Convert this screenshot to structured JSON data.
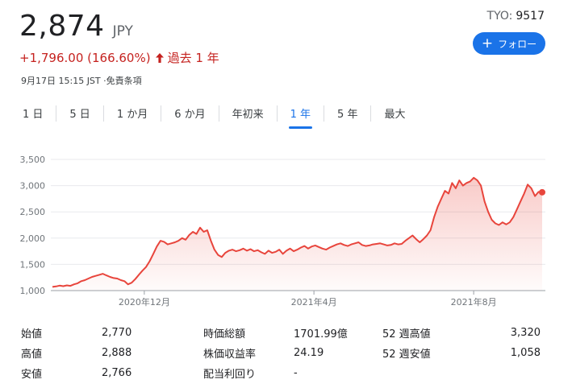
{
  "quote": {
    "price": "2,874",
    "currency": "JPY",
    "change": "+1,796.00 (166.60%)",
    "period": "過去 1 年",
    "timestamp": "9月17日 15:15 JST ·免責条項",
    "exchange": "TYO:",
    "symbol": "9517"
  },
  "follow_button": {
    "label": "フォロー"
  },
  "ranges": [
    {
      "label": "1 日",
      "active": false
    },
    {
      "label": "5 日",
      "active": false
    },
    {
      "label": "1 か月",
      "active": false
    },
    {
      "label": "6 か月",
      "active": false
    },
    {
      "label": "年初来",
      "active": false
    },
    {
      "label": "1 年",
      "active": true
    },
    {
      "label": "5 年",
      "active": false
    },
    {
      "label": "最大",
      "active": false
    }
  ],
  "colors": {
    "line": "#e8453c",
    "accent": "#1a73e8",
    "down": "#c5221f"
  },
  "chart_data": {
    "type": "area",
    "y_ticks": [
      "3,500",
      "3,000",
      "2,500",
      "2,000",
      "1,500",
      "1,000"
    ],
    "y_values": [
      3500,
      3000,
      2500,
      2000,
      1500,
      1000
    ],
    "ylim": [
      1000,
      3500
    ],
    "x_ticks": [
      "2020年12月",
      "2021年4月",
      "2021年8月"
    ],
    "x_tick_pos": [
      0.189,
      0.532,
      0.855
    ],
    "grid": true,
    "series": [
      {
        "values": [
          1070,
          1080,
          1095,
          1085,
          1100,
          1090,
          1120,
          1140,
          1180,
          1200,
          1230,
          1260,
          1280,
          1300,
          1320,
          1290,
          1260,
          1240,
          1230,
          1200,
          1180,
          1120,
          1150,
          1220,
          1300,
          1380,
          1450,
          1560,
          1700,
          1840,
          1950,
          1930,
          1880,
          1900,
          1920,
          1950,
          2000,
          1970,
          2060,
          2120,
          2080,
          2200,
          2120,
          2150,
          1950,
          1780,
          1680,
          1640,
          1720,
          1760,
          1780,
          1750,
          1770,
          1800,
          1760,
          1790,
          1750,
          1770,
          1730,
          1700,
          1760,
          1720,
          1740,
          1780,
          1700,
          1760,
          1800,
          1750,
          1780,
          1820,
          1850,
          1800,
          1840,
          1860,
          1830,
          1800,
          1780,
          1820,
          1850,
          1880,
          1900,
          1870,
          1850,
          1880,
          1900,
          1920,
          1870,
          1850,
          1860,
          1880,
          1890,
          1900,
          1880,
          1860,
          1870,
          1900,
          1880,
          1890,
          1950,
          2000,
          2050,
          1980,
          1920,
          1980,
          2050,
          2150,
          2400,
          2600,
          2750,
          2900,
          2850,
          3050,
          2950,
          3100,
          3000,
          3050,
          3080,
          3150,
          3100,
          3000,
          2700,
          2500,
          2350,
          2280,
          2250,
          2300,
          2260,
          2300,
          2400,
          2550,
          2700,
          2850,
          3020,
          2950,
          2800,
          2880,
          2874
        ]
      }
    ],
    "last_value": 2874
  },
  "stats": {
    "col1": [
      {
        "label": "始値",
        "value": "2,770"
      },
      {
        "label": "高値",
        "value": "2,888"
      },
      {
        "label": "安値",
        "value": "2,766"
      }
    ],
    "col2": [
      {
        "label": "時価総額",
        "value": "1701.99億"
      },
      {
        "label": "株価収益率",
        "value": "24.19"
      },
      {
        "label": "配当利回り",
        "value": "-"
      }
    ],
    "col3": [
      {
        "label": "52 週高値",
        "value": "3,320"
      },
      {
        "label": "52 週安値",
        "value": "1,058"
      },
      {
        "label": "",
        "value": ""
      }
    ]
  }
}
